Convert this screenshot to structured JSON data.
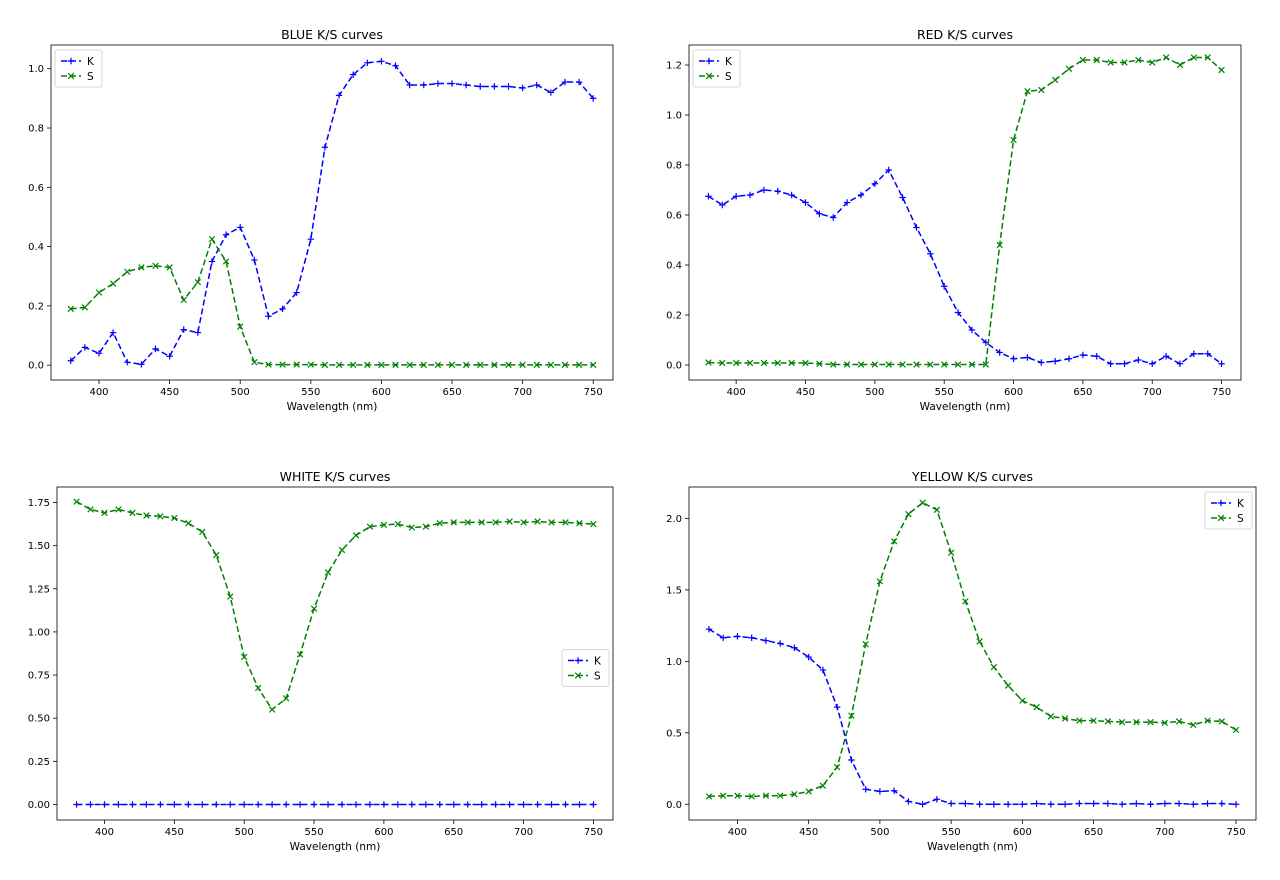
{
  "colors": {
    "K": "#0000ff",
    "S": "#008000"
  },
  "chart_data": [
    {
      "type": "line",
      "title": "BLUE K/S curves",
      "xlabel": "Wavelength (nm)",
      "ylabel": "",
      "xlim": [
        366,
        764
      ],
      "ylim": [
        -0.05,
        1.08
      ],
      "xticks": [
        "400",
        "450",
        "500",
        "550",
        "600",
        "650",
        "700",
        "750"
      ],
      "yticks": [
        "0.0",
        "0.2",
        "0.4",
        "0.6",
        "0.8",
        "1.0"
      ],
      "legend_position": "upper-left",
      "x": [
        380,
        390,
        400,
        410,
        420,
        430,
        440,
        450,
        460,
        470,
        480,
        490,
        500,
        510,
        520,
        530,
        540,
        550,
        560,
        570,
        580,
        590,
        600,
        610,
        620,
        630,
        640,
        650,
        660,
        670,
        680,
        690,
        700,
        710,
        720,
        730,
        740,
        750
      ],
      "series": [
        {
          "name": "K",
          "marker": "+",
          "color_key": "K",
          "values": [
            0.015,
            0.06,
            0.04,
            0.11,
            0.01,
            0.003,
            0.055,
            0.03,
            0.12,
            0.11,
            0.35,
            0.44,
            0.465,
            0.355,
            0.165,
            0.19,
            0.245,
            0.425,
            0.735,
            0.91,
            0.98,
            1.02,
            1.025,
            1.01,
            0.945,
            0.945,
            0.95,
            0.95,
            0.945,
            0.94,
            0.94,
            0.94,
            0.935,
            0.945,
            0.92,
            0.955,
            0.955,
            0.9
          ]
        },
        {
          "name": "S",
          "marker": "x",
          "color_key": "S",
          "values": [
            0.19,
            0.195,
            0.245,
            0.275,
            0.315,
            0.33,
            0.335,
            0.33,
            0.22,
            0.28,
            0.425,
            0.35,
            0.13,
            0.01,
            0.002,
            0.002,
            0.002,
            0.002,
            0.001,
            0.001,
            0.001,
            0.001,
            0.001,
            0.001,
            0.001,
            0.001,
            0.001,
            0.001,
            0.001,
            0.001,
            0.001,
            0.001,
            0.001,
            0.001,
            0.001,
            0.001,
            0.001,
            0.001
          ]
        }
      ]
    },
    {
      "type": "line",
      "title": "RED K/S curves",
      "xlabel": "Wavelength (nm)",
      "ylabel": "",
      "xlim": [
        366,
        764
      ],
      "ylim": [
        -0.06,
        1.28
      ],
      "xticks": [
        "400",
        "450",
        "500",
        "550",
        "600",
        "650",
        "700",
        "750"
      ],
      "yticks": [
        "0.0",
        "0.2",
        "0.4",
        "0.6",
        "0.8",
        "1.0",
        "1.2"
      ],
      "legend_position": "upper-left",
      "x": [
        380,
        390,
        400,
        410,
        420,
        430,
        440,
        450,
        460,
        470,
        480,
        490,
        500,
        510,
        520,
        530,
        540,
        550,
        560,
        570,
        580,
        590,
        600,
        610,
        620,
        630,
        640,
        650,
        660,
        670,
        680,
        690,
        700,
        710,
        720,
        730,
        740,
        750
      ],
      "series": [
        {
          "name": "K",
          "marker": "+",
          "color_key": "K",
          "values": [
            0.675,
            0.64,
            0.675,
            0.68,
            0.7,
            0.695,
            0.68,
            0.65,
            0.605,
            0.59,
            0.65,
            0.68,
            0.725,
            0.78,
            0.67,
            0.55,
            0.445,
            0.315,
            0.21,
            0.14,
            0.09,
            0.05,
            0.025,
            0.03,
            0.01,
            0.015,
            0.025,
            0.04,
            0.035,
            0.005,
            0.005,
            0.02,
            0.005,
            0.035,
            0.005,
            0.045,
            0.045,
            0.005
          ]
        },
        {
          "name": "S",
          "marker": "x",
          "color_key": "S",
          "values": [
            0.01,
            0.008,
            0.008,
            0.008,
            0.008,
            0.008,
            0.008,
            0.008,
            0.005,
            0.002,
            0.002,
            0.002,
            0.002,
            0.002,
            0.002,
            0.002,
            0.002,
            0.002,
            0.002,
            0.002,
            0.002,
            0.48,
            0.9,
            1.095,
            1.1,
            1.14,
            1.185,
            1.22,
            1.22,
            1.21,
            1.21,
            1.22,
            1.21,
            1.23,
            1.2,
            1.23,
            1.23,
            1.18
          ]
        }
      ]
    },
    {
      "type": "line",
      "title": "WHITE K/S curves",
      "xlabel": "Wavelength (nm)",
      "ylabel": "",
      "xlim": [
        366,
        764
      ],
      "ylim": [
        -0.09,
        1.84
      ],
      "xticks": [
        "400",
        "450",
        "500",
        "550",
        "600",
        "650",
        "700",
        "750"
      ],
      "yticks": [
        "0.00",
        "0.25",
        "0.50",
        "0.75",
        "1.00",
        "1.25",
        "1.50",
        "1.75"
      ],
      "legend_position": "center-right",
      "x": [
        380,
        390,
        400,
        410,
        420,
        430,
        440,
        450,
        460,
        470,
        480,
        490,
        500,
        510,
        520,
        530,
        540,
        550,
        560,
        570,
        580,
        590,
        600,
        610,
        620,
        630,
        640,
        650,
        660,
        670,
        680,
        690,
        700,
        710,
        720,
        730,
        740,
        750
      ],
      "series": [
        {
          "name": "K",
          "marker": "+",
          "color_key": "K",
          "values": [
            0.0,
            0.0,
            0.0,
            0.0,
            0.0,
            0.0,
            0.0,
            0.0,
            0.0,
            0.0,
            0.0,
            0.0,
            0.0,
            0.0,
            0.0,
            0.0,
            0.0,
            0.0,
            0.0,
            0.0,
            0.0,
            0.0,
            0.0,
            0.0,
            0.0,
            0.0,
            0.0,
            0.0,
            0.0,
            0.0,
            0.0,
            0.0,
            0.0,
            0.0,
            0.0,
            0.0,
            0.0,
            0.0
          ]
        },
        {
          "name": "S",
          "marker": "x",
          "color_key": "S",
          "values": [
            1.755,
            1.71,
            1.69,
            1.71,
            1.69,
            1.675,
            1.67,
            1.66,
            1.63,
            1.58,
            1.445,
            1.205,
            0.855,
            0.675,
            0.55,
            0.615,
            0.87,
            1.135,
            1.345,
            1.475,
            1.56,
            1.61,
            1.62,
            1.625,
            1.605,
            1.61,
            1.63,
            1.635,
            1.635,
            1.635,
            1.635,
            1.64,
            1.635,
            1.64,
            1.635,
            1.635,
            1.63,
            1.625
          ]
        }
      ]
    },
    {
      "type": "line",
      "title": "YELLOW K/S curves",
      "xlabel": "Wavelength (nm)",
      "ylabel": "",
      "xlim": [
        366,
        764
      ],
      "ylim": [
        -0.11,
        2.22
      ],
      "xticks": [
        "400",
        "450",
        "500",
        "550",
        "600",
        "650",
        "700",
        "750"
      ],
      "yticks": [
        "0.0",
        "0.5",
        "1.0",
        "1.5",
        "2.0"
      ],
      "legend_position": "upper-right",
      "x": [
        380,
        390,
        400,
        410,
        420,
        430,
        440,
        450,
        460,
        470,
        480,
        490,
        500,
        510,
        520,
        530,
        540,
        550,
        560,
        570,
        580,
        590,
        600,
        610,
        620,
        630,
        640,
        650,
        660,
        670,
        680,
        690,
        700,
        710,
        720,
        730,
        740,
        750
      ],
      "series": [
        {
          "name": "K",
          "marker": "+",
          "color_key": "K",
          "values": [
            1.225,
            1.165,
            1.175,
            1.165,
            1.145,
            1.125,
            1.095,
            1.03,
            0.94,
            0.68,
            0.31,
            0.105,
            0.09,
            0.095,
            0.02,
            0.0,
            0.035,
            0.005,
            0.005,
            0.0,
            0.0,
            0.0,
            0.0,
            0.005,
            0.0,
            0.0,
            0.005,
            0.005,
            0.005,
            0.0,
            0.005,
            0.0,
            0.005,
            0.005,
            0.0,
            0.005,
            0.005,
            0.0
          ]
        },
        {
          "name": "S",
          "marker": "x",
          "color_key": "S",
          "values": [
            0.055,
            0.06,
            0.06,
            0.055,
            0.06,
            0.06,
            0.07,
            0.09,
            0.13,
            0.26,
            0.62,
            1.12,
            1.56,
            1.84,
            2.03,
            2.11,
            2.06,
            1.76,
            1.42,
            1.14,
            0.96,
            0.83,
            0.725,
            0.68,
            0.615,
            0.6,
            0.585,
            0.585,
            0.58,
            0.575,
            0.575,
            0.575,
            0.57,
            0.58,
            0.555,
            0.585,
            0.58,
            0.52
          ]
        }
      ]
    }
  ]
}
